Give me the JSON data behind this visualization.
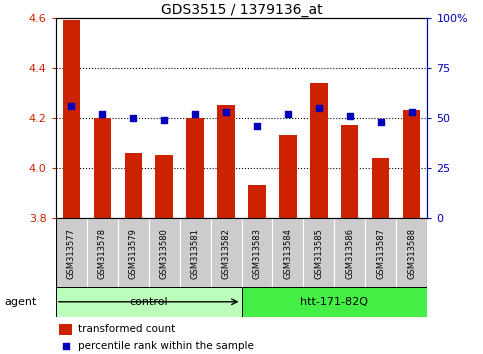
{
  "title": "GDS3515 / 1379136_at",
  "samples": [
    "GSM313577",
    "GSM313578",
    "GSM313579",
    "GSM313580",
    "GSM313581",
    "GSM313582",
    "GSM313583",
    "GSM313584",
    "GSM313585",
    "GSM313586",
    "GSM313587",
    "GSM313588"
  ],
  "transformed_count": [
    4.59,
    4.2,
    4.06,
    4.05,
    4.2,
    4.25,
    3.93,
    4.13,
    4.34,
    4.17,
    4.04,
    4.23
  ],
  "percentile_rank": [
    56,
    52,
    50,
    49,
    52,
    53,
    46,
    52,
    55,
    51,
    48,
    53
  ],
  "ylim_left": [
    3.8,
    4.6
  ],
  "ylim_right": [
    0,
    100
  ],
  "yticks_left": [
    3.8,
    4.0,
    4.2,
    4.4,
    4.6
  ],
  "yticks_right": [
    0,
    25,
    50,
    75,
    100
  ],
  "bar_color": "#cc2200",
  "dot_color": "#0000bb",
  "bar_bottom": 3.8,
  "groups": [
    {
      "label": "control",
      "indices": [
        0,
        1,
        2,
        3,
        4,
        5
      ],
      "color": "#bbffbb"
    },
    {
      "label": "htt-171-82Q",
      "indices": [
        6,
        7,
        8,
        9,
        10,
        11
      ],
      "color": "#44ee44"
    }
  ],
  "agent_label": "agent",
  "legend_bar_label": "transformed count",
  "legend_dot_label": "percentile rank within the sample",
  "bg_color": "#ffffff",
  "sample_box_color": "#cccccc",
  "title_fontsize": 10,
  "axis_fontsize": 8,
  "sample_fontsize": 6,
  "group_fontsize": 8,
  "legend_fontsize": 7.5
}
